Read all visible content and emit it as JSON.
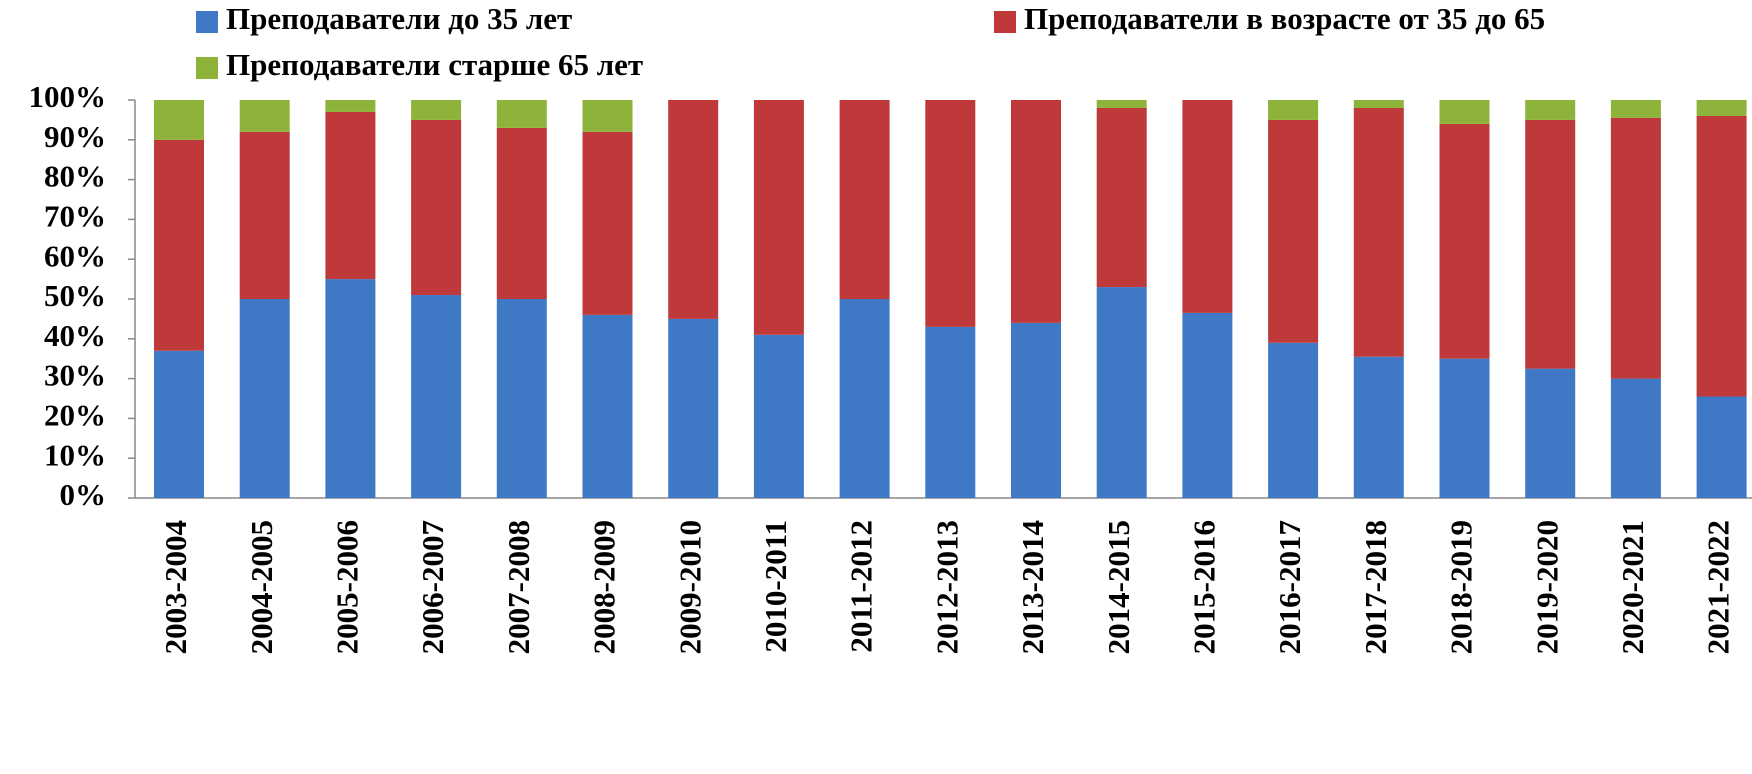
{
  "chart_data": {
    "type": "stacked_bar",
    "categories": [
      "2003-2004",
      "2004-2005",
      "2005-2006",
      "2006-2007",
      "2007-2008",
      "2008-2009",
      "2009-2010",
      "2010-2011",
      "2011-2012",
      "2012-2013",
      "2013-2014",
      "2014-2015",
      "2015-2016",
      "2016-2017",
      "2017-2018",
      "2018-2019",
      "2019-2020",
      "2020-2021",
      "2021-2022"
    ],
    "series": [
      {
        "name": "Преподаватели до 35 лет",
        "color": "#3f79c6",
        "values": [
          37,
          50,
          55,
          51,
          50,
          46,
          45,
          41,
          50,
          43,
          44,
          53,
          46.5,
          39,
          35.5,
          35,
          32.5,
          30,
          25.5
        ]
      },
      {
        "name": "Преподаватели в возрасте от 35 до 65",
        "color": "#c0393a",
        "values": [
          53,
          42,
          42,
          44,
          43,
          46,
          55,
          59,
          50,
          57,
          56,
          45,
          53.5,
          56,
          62.5,
          59,
          62.5,
          65.5,
          70.5
        ]
      },
      {
        "name": "Преподаватели старше 65 лет",
        "color": "#8db33a",
        "values": [
          10,
          8,
          3,
          5,
          7,
          8,
          0,
          0,
          0,
          0,
          0,
          2,
          0,
          5,
          2,
          6,
          5,
          4.5,
          4
        ]
      }
    ],
    "ylim": [
      0,
      100
    ],
    "yticks": [
      {
        "value": 0,
        "label": "0%"
      },
      {
        "value": 10,
        "label": "10%"
      },
      {
        "value": 20,
        "label": "20%"
      },
      {
        "value": 30,
        "label": "30%"
      },
      {
        "value": 40,
        "label": "40%"
      },
      {
        "value": 50,
        "label": "50%"
      },
      {
        "value": 60,
        "label": "60%"
      },
      {
        "value": 70,
        "label": "70%"
      },
      {
        "value": 80,
        "label": "80%"
      },
      {
        "value": 90,
        "label": "90%"
      },
      {
        "value": 100,
        "label": "100%"
      }
    ],
    "legend": "top"
  }
}
